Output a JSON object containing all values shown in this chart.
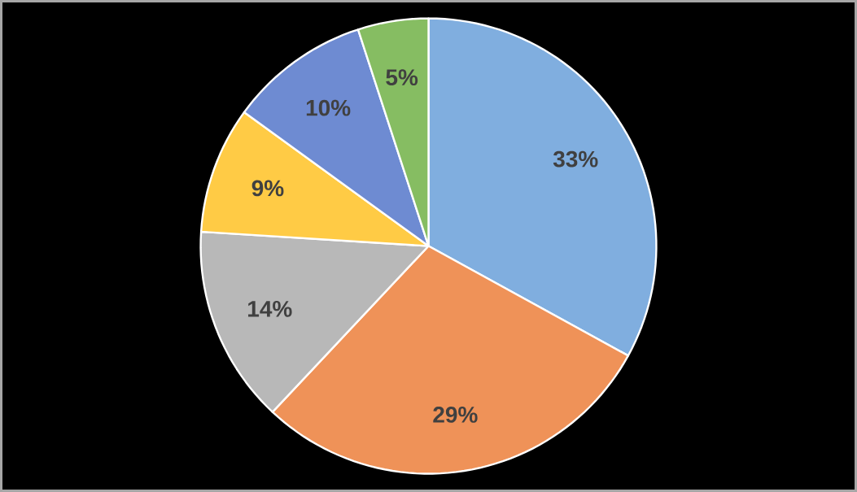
{
  "chart_data": {
    "type": "pie",
    "categories": [
      null,
      null,
      null,
      null,
      null,
      null
    ],
    "values": [
      33,
      29,
      14,
      9,
      10,
      5
    ],
    "value_labels": [
      "33%",
      "29%",
      "14%",
      "9%",
      "10%",
      "5%"
    ],
    "colors": [
      "#80aedf",
      "#ef9258",
      "#b8b8b8",
      "#ffcb45",
      "#6e8bd2",
      "#86bd62"
    ]
  }
}
